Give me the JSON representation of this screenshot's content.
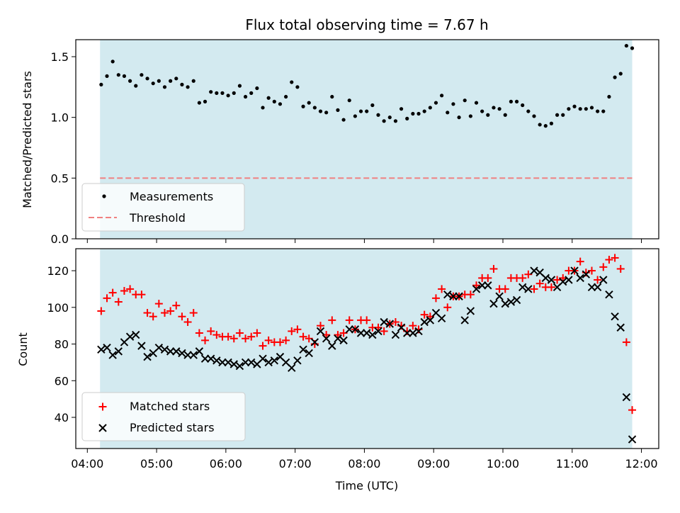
{
  "title": "Flux total observing time = 7.67 h",
  "xlabel": "Time (UTC)",
  "colors": {
    "shade": "#d3eaf0",
    "threshold": "#f08080",
    "matched": "#ff0000",
    "predicted": "#000000",
    "measure": "#000000"
  },
  "chart_data": [
    {
      "type": "scatter",
      "title": "Flux total observing time = 7.67 h",
      "ylabel": "Matched/Predicted stars",
      "xlim": [
        "03:50",
        "12:15"
      ],
      "ylim": [
        0,
        1.64
      ],
      "yticks": [
        0.0,
        0.5,
        1.0,
        1.5
      ],
      "ytick_labels": [
        "0.0",
        "0.5",
        "1.0",
        "1.5"
      ],
      "shaded_span": [
        "04:11",
        "11:52"
      ],
      "legend_position": "lower-left",
      "threshold": {
        "name": "Threshold",
        "y": 0.5,
        "x_range": [
          "04:11",
          "11:52"
        ]
      },
      "series": [
        {
          "name": "Measurements",
          "x": [
            "04:12",
            "04:17",
            "04:22",
            "04:27",
            "04:32",
            "04:37",
            "04:42",
            "04:47",
            "04:52",
            "04:57",
            "05:02",
            "05:07",
            "05:12",
            "05:17",
            "05:22",
            "05:27",
            "05:32",
            "05:37",
            "05:42",
            "05:47",
            "05:52",
            "05:57",
            "06:02",
            "06:07",
            "06:12",
            "06:17",
            "06:22",
            "06:27",
            "06:32",
            "06:37",
            "06:42",
            "06:47",
            "06:52",
            "06:57",
            "07:02",
            "07:07",
            "07:12",
            "07:17",
            "07:22",
            "07:27",
            "07:32",
            "07:37",
            "07:42",
            "07:47",
            "07:52",
            "07:57",
            "08:02",
            "08:07",
            "08:12",
            "08:17",
            "08:22",
            "08:27",
            "08:32",
            "08:37",
            "08:42",
            "08:47",
            "08:52",
            "08:57",
            "09:02",
            "09:07",
            "09:12",
            "09:17",
            "09:22",
            "09:27",
            "09:32",
            "09:37",
            "09:42",
            "09:47",
            "09:52",
            "09:57",
            "10:02",
            "10:07",
            "10:12",
            "10:17",
            "10:22",
            "10:27",
            "10:32",
            "10:37",
            "10:42",
            "10:47",
            "10:52",
            "10:57",
            "11:02",
            "11:07",
            "11:12",
            "11:17",
            "11:22",
            "11:27",
            "11:32",
            "11:37",
            "11:42",
            "11:47",
            "11:52"
          ],
          "y": [
            1.27,
            1.34,
            1.46,
            1.35,
            1.34,
            1.3,
            1.26,
            1.35,
            1.32,
            1.28,
            1.3,
            1.25,
            1.3,
            1.32,
            1.27,
            1.25,
            1.3,
            1.12,
            1.13,
            1.21,
            1.2,
            1.2,
            1.18,
            1.2,
            1.26,
            1.17,
            1.2,
            1.24,
            1.08,
            1.16,
            1.13,
            1.11,
            1.17,
            1.29,
            1.25,
            1.09,
            1.12,
            1.08,
            1.05,
            1.04,
            1.17,
            1.06,
            0.98,
            1.14,
            1.01,
            1.05,
            1.05,
            1.1,
            1.02,
            0.97,
            1.0,
            0.97,
            1.07,
            0.99,
            1.03,
            1.03,
            1.05,
            1.08,
            1.12,
            1.18,
            1.04,
            1.11,
            1.0,
            1.14,
            1.01,
            1.12,
            1.05,
            1.02,
            1.08,
            1.07,
            1.02,
            1.13,
            1.13,
            1.1,
            1.05,
            1.01,
            0.94,
            0.93,
            0.95,
            1.02,
            1.02,
            1.07,
            1.09,
            1.07,
            1.07,
            1.08,
            1.05,
            1.05,
            1.17,
            1.33,
            1.36,
            1.59,
            1.57
          ]
        }
      ]
    },
    {
      "type": "scatter",
      "ylabel": "Count",
      "xlabel": "Time (UTC)",
      "xlim": [
        "03:50",
        "12:15"
      ],
      "ylim": [
        23,
        132
      ],
      "yticks": [
        40,
        60,
        80,
        100,
        120
      ],
      "xticks": [
        "04:00",
        "05:00",
        "06:00",
        "07:00",
        "08:00",
        "09:00",
        "10:00",
        "11:00",
        "12:00"
      ],
      "shaded_span": [
        "04:11",
        "11:52"
      ],
      "legend_position": "lower-left",
      "series": [
        {
          "name": "Matched stars",
          "marker": "+",
          "x": [
            "04:12",
            "04:17",
            "04:22",
            "04:27",
            "04:32",
            "04:37",
            "04:42",
            "04:47",
            "04:52",
            "04:57",
            "05:02",
            "05:07",
            "05:12",
            "05:17",
            "05:22",
            "05:27",
            "05:32",
            "05:37",
            "05:42",
            "05:47",
            "05:52",
            "05:57",
            "06:02",
            "06:07",
            "06:12",
            "06:17",
            "06:22",
            "06:27",
            "06:32",
            "06:37",
            "06:42",
            "06:47",
            "06:52",
            "06:57",
            "07:02",
            "07:07",
            "07:12",
            "07:17",
            "07:22",
            "07:27",
            "07:32",
            "07:37",
            "07:42",
            "07:47",
            "07:52",
            "07:57",
            "08:02",
            "08:07",
            "08:12",
            "08:17",
            "08:22",
            "08:27",
            "08:32",
            "08:37",
            "08:42",
            "08:47",
            "08:52",
            "08:57",
            "09:02",
            "09:07",
            "09:12",
            "09:17",
            "09:22",
            "09:27",
            "09:32",
            "09:37",
            "09:42",
            "09:47",
            "09:52",
            "09:57",
            "10:02",
            "10:07",
            "10:12",
            "10:17",
            "10:22",
            "10:27",
            "10:32",
            "10:37",
            "10:42",
            "10:47",
            "10:52",
            "10:57",
            "11:02",
            "11:07",
            "11:12",
            "11:17",
            "11:22",
            "11:27",
            "11:32",
            "11:37",
            "11:42",
            "11:47",
            "11:52"
          ],
          "y": [
            98,
            105,
            108,
            103,
            109,
            110,
            107,
            107,
            97,
            95,
            102,
            97,
            98,
            101,
            95,
            92,
            97,
            86,
            82,
            87,
            85,
            84,
            84,
            83,
            86,
            83,
            84,
            86,
            79,
            82,
            81,
            81,
            82,
            87,
            88,
            84,
            83,
            80,
            90,
            85,
            93,
            85,
            86,
            93,
            88,
            93,
            93,
            89,
            89,
            87,
            91,
            92,
            90,
            87,
            90,
            88,
            96,
            95,
            105,
            110,
            100,
            106,
            106,
            107,
            107,
            112,
            116,
            116,
            121,
            110,
            110,
            116,
            116,
            116,
            118,
            110,
            113,
            111,
            111,
            115,
            116,
            120,
            120,
            125,
            119,
            120,
            115,
            122,
            126,
            127,
            121,
            81,
            44
          ]
        },
        {
          "name": "Predicted stars",
          "marker": "x",
          "x": [
            "04:12",
            "04:17",
            "04:22",
            "04:27",
            "04:32",
            "04:37",
            "04:42",
            "04:47",
            "04:52",
            "04:57",
            "05:02",
            "05:07",
            "05:12",
            "05:17",
            "05:22",
            "05:27",
            "05:32",
            "05:37",
            "05:42",
            "05:47",
            "05:52",
            "05:57",
            "06:02",
            "06:07",
            "06:12",
            "06:17",
            "06:22",
            "06:27",
            "06:32",
            "06:37",
            "06:42",
            "06:47",
            "06:52",
            "06:57",
            "07:02",
            "07:07",
            "07:12",
            "07:17",
            "07:22",
            "07:27",
            "07:32",
            "07:37",
            "07:42",
            "07:47",
            "07:52",
            "07:57",
            "08:02",
            "08:07",
            "08:12",
            "08:17",
            "08:22",
            "08:27",
            "08:32",
            "08:37",
            "08:42",
            "08:47",
            "08:52",
            "08:57",
            "09:02",
            "09:07",
            "09:12",
            "09:17",
            "09:22",
            "09:27",
            "09:32",
            "09:37",
            "09:42",
            "09:47",
            "09:52",
            "09:57",
            "10:02",
            "10:07",
            "10:12",
            "10:17",
            "10:22",
            "10:27",
            "10:32",
            "10:37",
            "10:42",
            "10:47",
            "10:52",
            "10:57",
            "11:02",
            "11:07",
            "11:12",
            "11:17",
            "11:22",
            "11:27",
            "11:32",
            "11:37",
            "11:42",
            "11:47",
            "11:52"
          ],
          "y": [
            77,
            78,
            74,
            76,
            81,
            84,
            85,
            79,
            73,
            75,
            78,
            77,
            76,
            76,
            75,
            74,
            74,
            76,
            72,
            72,
            71,
            70,
            70,
            69,
            68,
            70,
            70,
            69,
            72,
            70,
            71,
            73,
            70,
            67,
            71,
            77,
            75,
            81,
            87,
            83,
            79,
            83,
            82,
            88,
            88,
            86,
            86,
            85,
            87,
            92,
            91,
            85,
            89,
            86,
            86,
            87,
            92,
            93,
            97,
            94,
            107,
            106,
            106,
            93,
            98,
            110,
            112,
            112,
            102,
            106,
            102,
            103,
            104,
            111,
            110,
            120,
            119,
            116,
            115,
            111,
            114,
            115,
            120,
            116,
            118,
            111,
            111,
            115,
            107,
            95,
            89,
            51,
            28
          ]
        }
      ]
    }
  ]
}
